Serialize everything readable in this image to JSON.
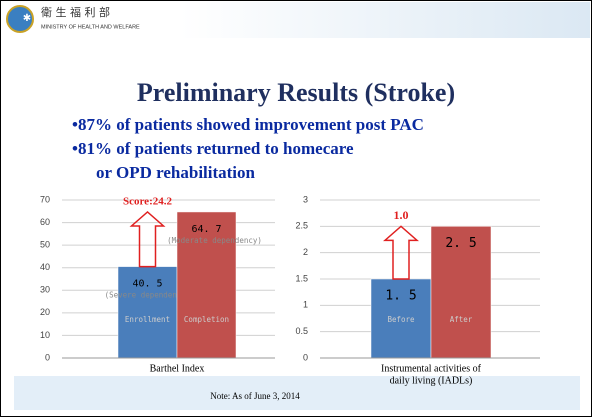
{
  "header": {
    "org_cn": "衛 生 福 利 部",
    "org_en": "MINISTRY OF HEALTH AND WELFARE"
  },
  "title": "Preliminary Results (Stroke)",
  "bullets": [
    [
      "•87% of patients showed improvement post PAC"
    ],
    [
      "•81% of patients returned to homecare",
      "or OPD rehabilitation"
    ]
  ],
  "note": "Note: As of June 3, 2014",
  "chart_data": [
    {
      "type": "bar",
      "xlabel": [
        "Barthel Index"
      ],
      "values": [
        40.5,
        64.7
      ],
      "value_labels": [
        "40. 5",
        "64. 7"
      ],
      "bar_labels": [
        "Enrollment",
        "Completion"
      ],
      "bar_notes": [
        "(Severe dependency)",
        "(Moderate dependency)"
      ],
      "colors": [
        "#4a7ebb",
        "#c0504d"
      ],
      "annotation": "Score:24.2",
      "ylim": [
        0,
        70
      ],
      "yticks": [
        0,
        10,
        20,
        30,
        40,
        50,
        60,
        70
      ],
      "grid": true
    },
    {
      "type": "bar",
      "xlabel": [
        "Instrumental activities of",
        "daily living (IADLs)"
      ],
      "values": [
        1.5,
        2.5
      ],
      "value_labels": [
        "1. 5",
        "2. 5"
      ],
      "bar_labels": [
        "Before",
        "After"
      ],
      "bar_notes": [],
      "colors": [
        "#4a7ebb",
        "#c0504d"
      ],
      "annotation": "1.0",
      "ylim": [
        0,
        3
      ],
      "yticks": [
        0,
        0.5,
        1,
        1.5,
        2,
        2.5,
        3
      ],
      "grid": true
    }
  ]
}
